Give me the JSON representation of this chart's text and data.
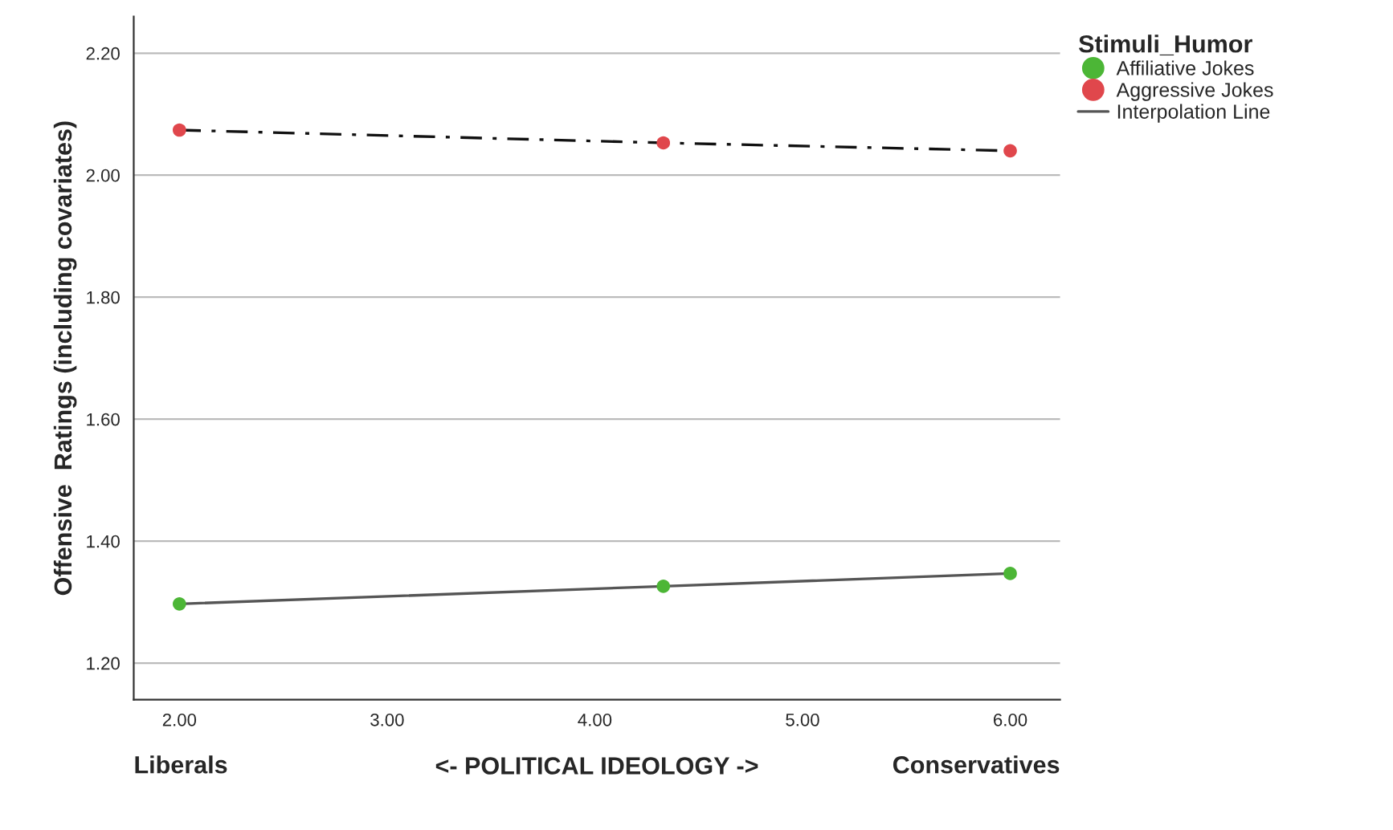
{
  "chart_data": {
    "type": "scatter",
    "xlabel": "<- POLITICAL IDEOLOGY ->",
    "ylabel": "Offensive  Ratings (including covariates)",
    "legend_title": "Stimuli_Humor",
    "annotations": [
      "Liberals",
      "Conservatives"
    ],
    "x": [
      2.0,
      4.33,
      6.0
    ],
    "series": [
      {
        "type": "line",
        "name": "Interpolation Line",
        "color": "#555555",
        "line_style": "solid",
        "marker": "none",
        "values": [
          1.297,
          1.326,
          1.347
        ]
      },
      {
        "type": "line",
        "color": "#111111",
        "line_style": "dashdot",
        "marker": "none",
        "values": [
          2.074,
          2.053,
          2.04
        ]
      },
      {
        "name": "Affiliative Jokes",
        "color": "#4cb636",
        "marker": "circle",
        "values": [
          1.297,
          1.326,
          1.347
        ]
      },
      {
        "name": "Aggressive Jokes",
        "color": "#e0474c",
        "marker": "circle",
        "values": [
          2.074,
          2.053,
          2.04
        ]
      }
    ],
    "xlim": [
      1.78,
      6.24
    ],
    "ylim": [
      1.14,
      2.26
    ],
    "xticks": [
      {
        "value": 2,
        "label": "2.00"
      },
      {
        "value": 3,
        "label": "3.00"
      },
      {
        "value": 4,
        "label": "4.00"
      },
      {
        "value": 5,
        "label": "5.00"
      },
      {
        "value": 6,
        "label": "6.00"
      }
    ],
    "yticks": [
      {
        "value": 1.2,
        "label": "1.20"
      },
      {
        "value": 1.4,
        "label": "1.40"
      },
      {
        "value": 1.6,
        "label": "1.60"
      },
      {
        "value": 1.8,
        "label": "1.80"
      },
      {
        "value": 2.0,
        "label": "2.00"
      },
      {
        "value": 2.2,
        "label": "2.20"
      }
    ],
    "grid": "y",
    "legend": "top right"
  }
}
